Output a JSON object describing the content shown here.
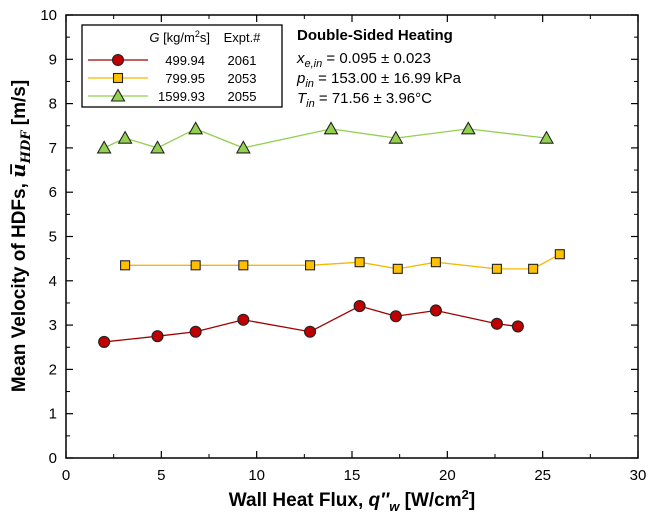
{
  "chart_data": {
    "type": "line",
    "xlabel": "Wall Heat Flux, q″w [W/cm²]",
    "xlabel_parts": {
      "main": "Wall Heat Flux, ",
      "var": "q″",
      "sub": "w",
      "unit": " [W/cm",
      "sup": "2",
      "close": "]"
    },
    "ylabel": "Mean Velocity of HDFs, ū_HDF [m/s]",
    "ylabel_parts": {
      "main": "Mean Velocity of HDFs, ",
      "var": "u̅",
      "sub": "HDF",
      "unit": " [m/s]"
    },
    "xlim": [
      0,
      30
    ],
    "ylim": [
      0,
      10
    ],
    "xticks": [
      "0",
      "5",
      "10",
      "15",
      "20",
      "25",
      "30"
    ],
    "yticks": [
      "0",
      "1",
      "2",
      "3",
      "4",
      "5",
      "6",
      "7",
      "8",
      "9",
      "10"
    ],
    "grid": false,
    "legend_position": "top-left",
    "legend_header": {
      "g_var": "G",
      "g_unit": " [kg/m",
      "g_sup": "2",
      "g_close": "s]",
      "expt": "Expt.#"
    },
    "series": [
      {
        "name": "499.94",
        "expt": "2061",
        "color": "#c00000",
        "line_color": "#a00000",
        "marker": "circle",
        "x": [
          2.0,
          4.8,
          6.8,
          9.3,
          12.8,
          15.4,
          17.3,
          19.4,
          22.6,
          23.7
        ],
        "y": [
          2.62,
          2.75,
          2.85,
          3.12,
          2.85,
          3.43,
          3.2,
          3.33,
          3.03,
          2.97
        ]
      },
      {
        "name": "799.95",
        "expt": "2053",
        "color": "#ffc000",
        "line_color": "#f5b800",
        "marker": "square",
        "x": [
          3.1,
          6.8,
          9.3,
          12.8,
          15.4,
          17.4,
          19.4,
          22.6,
          24.5,
          25.9
        ],
        "y": [
          4.35,
          4.35,
          4.35,
          4.35,
          4.42,
          4.27,
          4.42,
          4.27,
          4.27,
          4.6
        ]
      },
      {
        "name": "1599.93",
        "expt": "2055",
        "color": "#92d050",
        "line_color": "#92d050",
        "marker": "triangle",
        "x": [
          2.0,
          3.1,
          4.8,
          6.8,
          9.3,
          13.9,
          17.3,
          21.1,
          25.2
        ],
        "y": [
          7.0,
          7.22,
          7.0,
          7.43,
          7.0,
          7.43,
          7.22,
          7.43,
          7.22
        ]
      }
    ],
    "annotations": {
      "title": "Double-Sided Heating",
      "xe_var": "x",
      "xe_sub": "e,in",
      "xe_val": " = 0.095 ± 0.023",
      "p_var": "p",
      "p_sub": "in",
      "p_val": " = 153.00 ± 16.99 kPa",
      "t_var": "T",
      "t_sub": "in",
      "t_val": " = 71.56 ± 3.96°C"
    }
  }
}
